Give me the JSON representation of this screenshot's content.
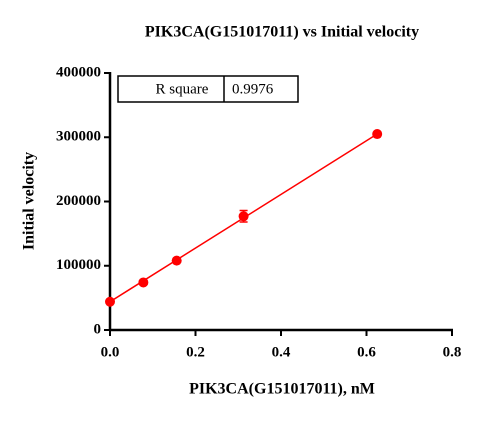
{
  "chart_data": {
    "type": "scatter",
    "title": "PIK3CA(G151017011) vs Initial velocity",
    "x_label": "PIK3CA(G151017011), nM",
    "y_label": "Initial velocity",
    "series": [
      {
        "color": "#ff0000",
        "x": [
          0,
          0.078,
          0.156,
          0.3125,
          0.625
        ],
        "values": [
          44000,
          74000,
          108000,
          177000,
          305000
        ],
        "errors": [
          0,
          0,
          0,
          9000,
          0
        ]
      },
      {
        "type": "line",
        "color": "#ff0000",
        "x": [
          0,
          0.625
        ],
        "values": [
          44000,
          305000
        ]
      }
    ],
    "table": [
      [
        "R square",
        "0.9976"
      ]
    ],
    "xlim": [
      0,
      0.8
    ],
    "xticks": [
      {
        "value": 0,
        "label": "0.0"
      },
      0.2,
      0.4,
      0.6,
      0.8
    ],
    "ylim": [
      0,
      400000
    ],
    "yticks": [
      0,
      100000,
      200000,
      300000,
      400000
    ]
  }
}
